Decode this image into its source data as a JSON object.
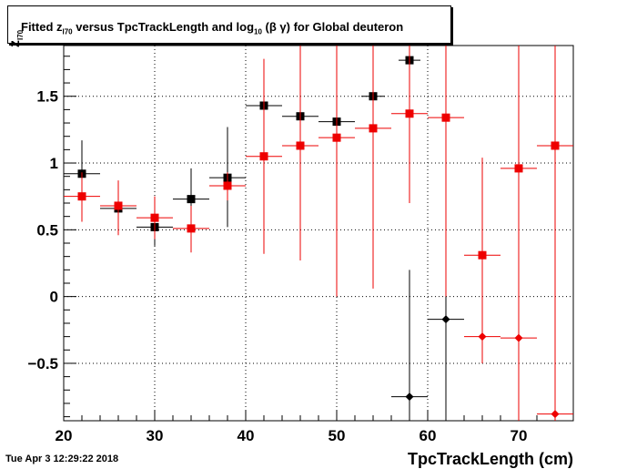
{
  "chart_data": {
    "type": "scatter",
    "title": "Fitted  z_I70  versus TpcTrackLength and log_10 (β γ) for Global deuteron",
    "title_parts": {
      "pre": "Fitted  z",
      "sub1": "I70",
      "mid": "  versus TpcTrackLength and log",
      "sub2": "10",
      "post": " (β γ) for Global deuteron"
    },
    "xlabel": "TpcTrackLength (cm)",
    "ylabel": "z",
    "ylabel_sub": "I70",
    "xlim": [
      20,
      76
    ],
    "ylim": [
      -0.93,
      1.88
    ],
    "x_ticks": [
      20,
      30,
      40,
      50,
      60,
      70
    ],
    "y_ticks": [
      -0.5,
      0,
      0.5,
      1,
      1.5
    ],
    "y_tick_labels": [
      "−0.5",
      "0",
      "0.5",
      "1",
      "1.5"
    ],
    "grid": true,
    "series": [
      {
        "color": "#000000",
        "points": [
          {
            "x": 22,
            "y": 0.92,
            "ylo": 0.72,
            "yhi": 1.17,
            "xerr": 2,
            "marker": "square"
          },
          {
            "x": 26,
            "y": 0.66,
            "ylo": 0.6,
            "yhi": 0.7,
            "xerr": 2,
            "marker": "square"
          },
          {
            "x": 30,
            "y": 0.52,
            "ylo": 0.38,
            "yhi": 0.64,
            "xerr": 2,
            "marker": "square"
          },
          {
            "x": 34,
            "y": 0.73,
            "ylo": 0.55,
            "yhi": 0.96,
            "xerr": 2,
            "marker": "square"
          },
          {
            "x": 38,
            "y": 0.89,
            "ylo": 0.52,
            "yhi": 1.27,
            "xerr": 2,
            "marker": "square"
          },
          {
            "x": 42,
            "y": 1.43,
            "ylo": 1.43,
            "yhi": 1.43,
            "xerr": 2,
            "marker": "square"
          },
          {
            "x": 46,
            "y": 1.35,
            "ylo": 0.27,
            "yhi": 1.88,
            "xerr": 2,
            "marker": "square"
          },
          {
            "x": 50,
            "y": 1.31,
            "ylo": 1.31,
            "yhi": 1.31,
            "xerr": 2,
            "marker": "square"
          },
          {
            "x": 54,
            "y": 1.5,
            "ylo": 1.5,
            "yhi": 1.5,
            "xerr": 1.3,
            "marker": "square"
          },
          {
            "x": 58,
            "y": 1.77,
            "ylo": 1.77,
            "yhi": 1.77,
            "xerr": 1.2,
            "marker": "square"
          },
          {
            "x": 58,
            "y": -0.75,
            "ylo": -0.93,
            "yhi": 0.2,
            "xerr": 2,
            "marker": "diamond"
          },
          {
            "x": 62,
            "y": -0.17,
            "ylo": -0.93,
            "yhi": 0.62,
            "xerr": 2,
            "marker": "diamond"
          }
        ]
      },
      {
        "color": "#ee0000",
        "points": [
          {
            "x": 22,
            "y": 0.75,
            "ylo": 0.56,
            "yhi": 0.93,
            "xerr": 2,
            "marker": "square"
          },
          {
            "x": 26,
            "y": 0.68,
            "ylo": 0.46,
            "yhi": 0.87,
            "xerr": 2,
            "marker": "square"
          },
          {
            "x": 30,
            "y": 0.59,
            "ylo": 0.43,
            "yhi": 0.75,
            "xerr": 2,
            "marker": "square"
          },
          {
            "x": 34,
            "y": 0.51,
            "ylo": 0.33,
            "yhi": 0.68,
            "xerr": 2,
            "marker": "square"
          },
          {
            "x": 38,
            "y": 0.83,
            "ylo": 0.72,
            "yhi": 0.93,
            "xerr": 2,
            "marker": "square"
          },
          {
            "x": 42,
            "y": 1.05,
            "ylo": 0.32,
            "yhi": 1.78,
            "xerr": 2,
            "marker": "square"
          },
          {
            "x": 46,
            "y": 1.13,
            "ylo": 0.27,
            "yhi": 1.88,
            "xerr": 2,
            "marker": "square"
          },
          {
            "x": 50,
            "y": 1.19,
            "ylo": 0.0,
            "yhi": 1.88,
            "xerr": 2,
            "marker": "square"
          },
          {
            "x": 54,
            "y": 1.26,
            "ylo": 0.06,
            "yhi": 1.88,
            "xerr": 2,
            "marker": "square"
          },
          {
            "x": 58,
            "y": 1.37,
            "ylo": 0.7,
            "yhi": 1.88,
            "xerr": 2,
            "marker": "square"
          },
          {
            "x": 62,
            "y": 1.34,
            "ylo": 0.0,
            "yhi": 1.88,
            "xerr": 2,
            "marker": "square"
          },
          {
            "x": 66,
            "y": 0.31,
            "ylo": -0.39,
            "yhi": 1.04,
            "xerr": 2,
            "marker": "square"
          },
          {
            "x": 66,
            "y": -0.3,
            "ylo": -0.5,
            "yhi": -0.3,
            "xerr": 2,
            "marker": "diamond"
          },
          {
            "x": 70,
            "y": 0.96,
            "ylo": -0.93,
            "yhi": 1.88,
            "xerr": 2,
            "marker": "square"
          },
          {
            "x": 70,
            "y": -0.31,
            "ylo": -0.93,
            "yhi": 1.88,
            "xerr": 2,
            "marker": "diamond"
          },
          {
            "x": 74,
            "y": 1.13,
            "ylo": -0.93,
            "yhi": 1.88,
            "xerr": 2,
            "marker": "square"
          },
          {
            "x": 74,
            "y": -0.88,
            "ylo": -0.93,
            "yhi": 1.88,
            "xerr": 2,
            "marker": "diamond"
          }
        ]
      }
    ]
  },
  "footer": {
    "timestamp": "Tue Apr  3 12:29:22 2018"
  }
}
